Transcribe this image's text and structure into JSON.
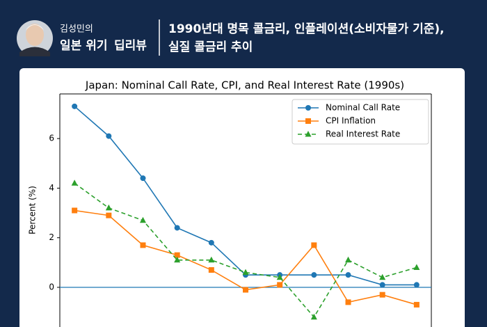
{
  "header": {
    "author": "김성민의",
    "series_title_1": "일본 위기",
    "series_title_2": "딥리뷰",
    "headline_1": "1990년대 명목 콜금리, 인플레이션(소비자물가 기준),",
    "headline_2": "실질 콜금리 추이"
  },
  "chart_data": {
    "type": "line",
    "title": "Japan: Nominal Call Rate, CPI, and Real Interest Rate (1990s)",
    "y_label": "Percent (%)",
    "categories": [
      null,
      null,
      null,
      null,
      null,
      null,
      null,
      null,
      null,
      null,
      null
    ],
    "series": [
      {
        "name": "Nominal Call Rate",
        "color": "#1f77b4",
        "marker": "circle",
        "linestyle": "solid",
        "values": [
          7.3,
          6.1,
          4.4,
          2.4,
          1.8,
          0.5,
          0.5,
          0.5,
          0.5,
          0.1,
          0.1
        ]
      },
      {
        "name": "CPI Inflation",
        "color": "#ff7f0e",
        "marker": "square",
        "linestyle": "solid",
        "values": [
          3.1,
          2.9,
          1.7,
          1.3,
          0.7,
          -0.1,
          0.1,
          1.7,
          -0.6,
          -0.3,
          -0.7
        ]
      },
      {
        "name": "Real Interest Rate",
        "color": "#2ca02c",
        "marker": "triangle",
        "linestyle": "dashed",
        "values": [
          4.2,
          3.2,
          2.7,
          1.1,
          1.1,
          0.6,
          0.4,
          -1.2,
          1.1,
          0.4,
          0.8
        ]
      }
    ],
    "ylim": [
      -1.6,
      7.8
    ],
    "yticks": [
      0,
      2,
      4,
      6
    ],
    "grid": false,
    "legend": "upper right"
  }
}
